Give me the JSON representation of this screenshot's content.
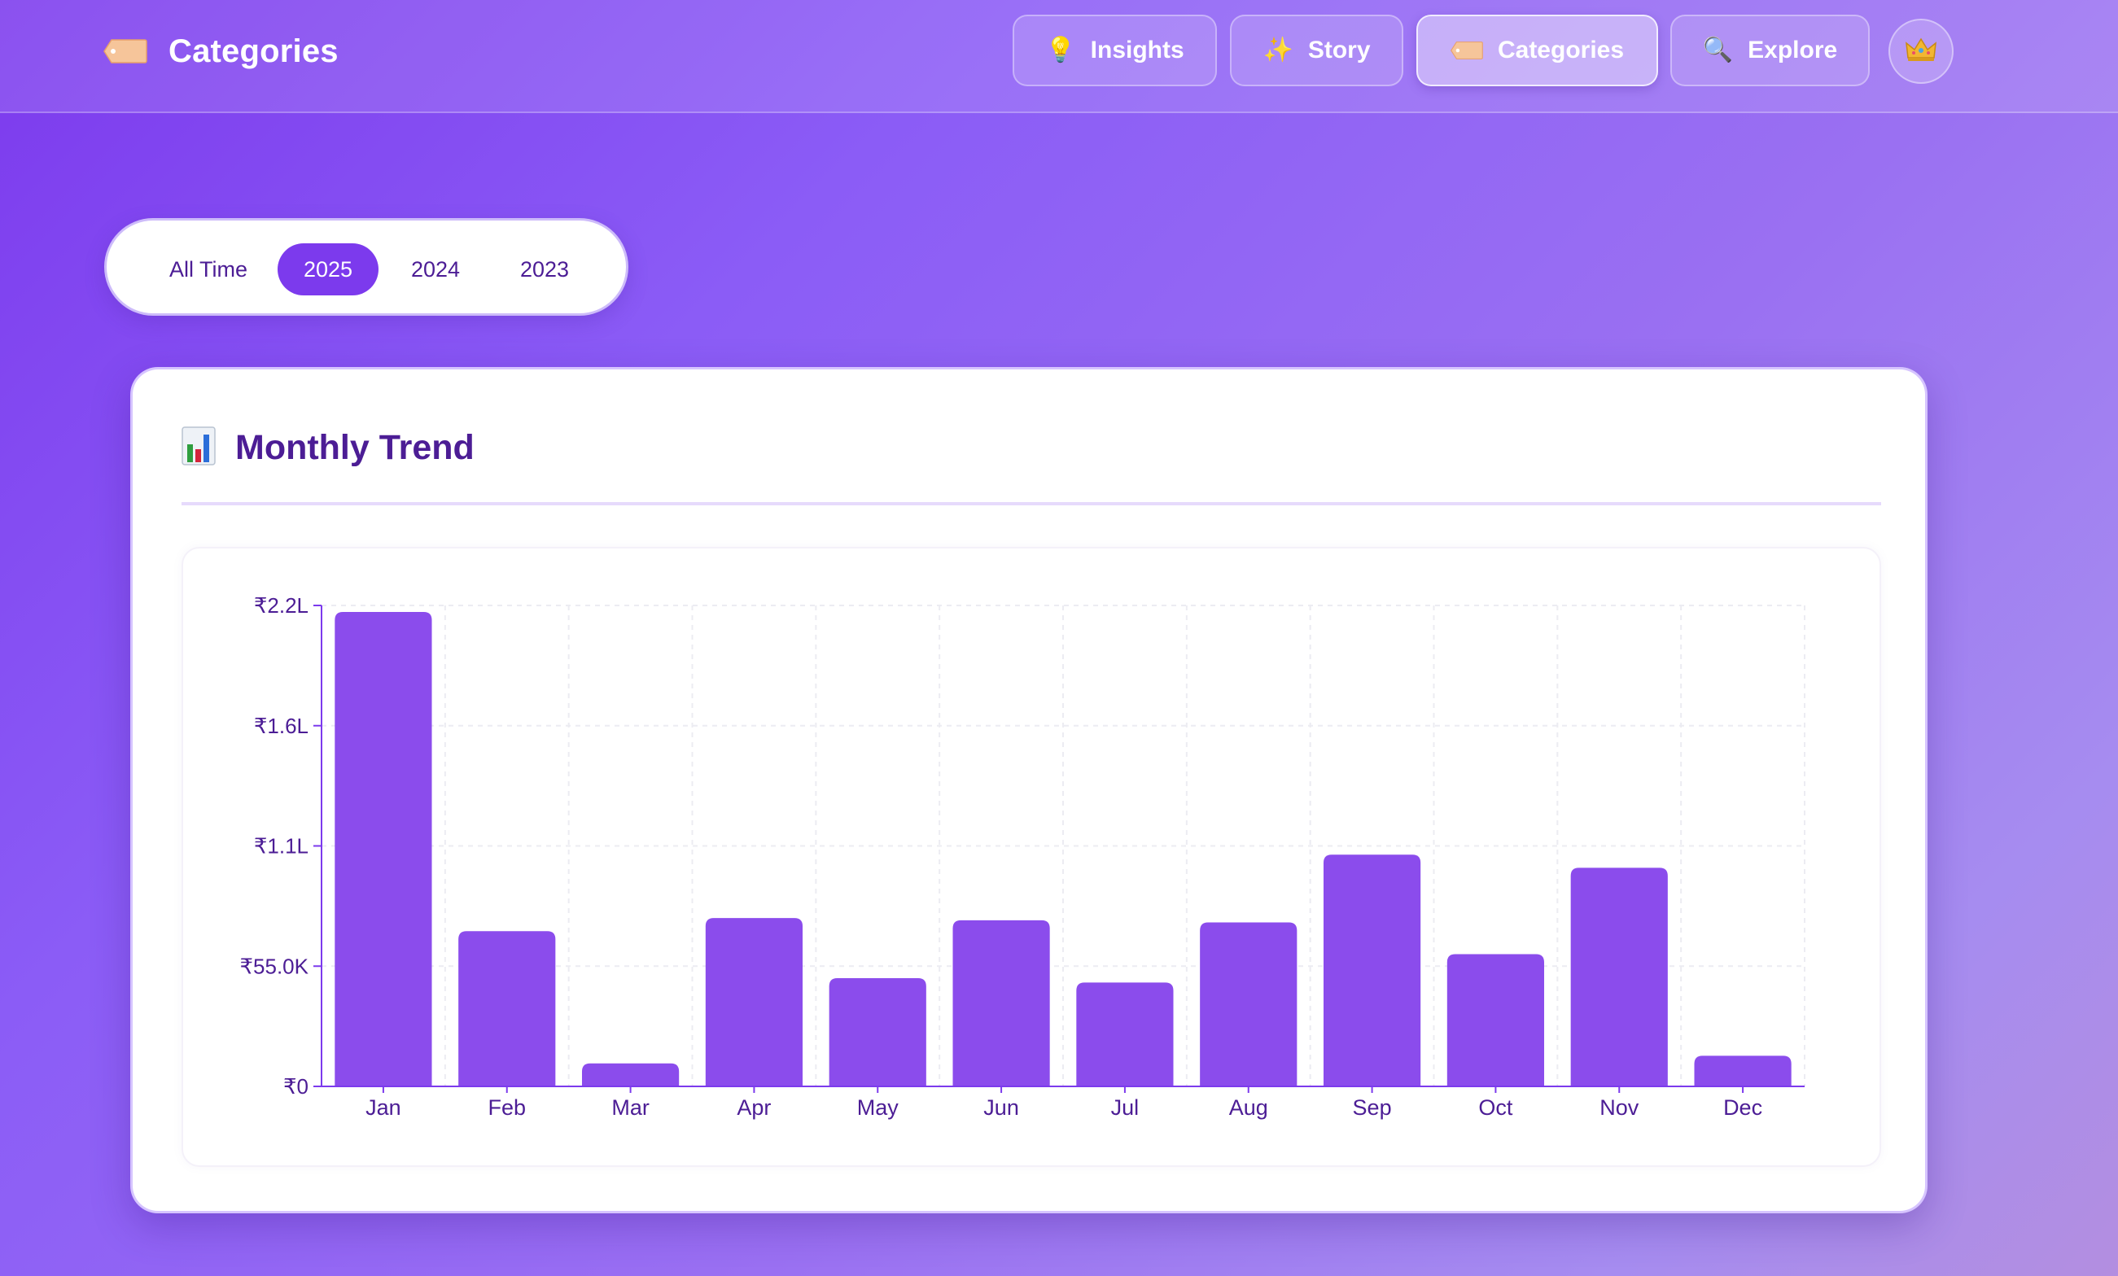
{
  "header": {
    "title": "Categories",
    "nav": [
      {
        "label": "Insights",
        "icon": "lightbulb-icon",
        "glyph": "💡",
        "active": false
      },
      {
        "label": "Story",
        "icon": "sparkles-icon",
        "glyph": "✨",
        "active": false
      },
      {
        "label": "Categories",
        "icon": "tag-icon",
        "glyph": "",
        "active": true
      },
      {
        "label": "Explore",
        "icon": "magnifier-icon",
        "glyph": "🔍",
        "active": false
      }
    ],
    "profile_icon": "crown-icon"
  },
  "year_filter": {
    "options": [
      "All Time",
      "2025",
      "2024",
      "2023"
    ],
    "selected": "2025"
  },
  "card": {
    "title": "Monthly Trend",
    "title_icon": "bar-chart-icon"
  },
  "colors": {
    "accent": "#7c3aed",
    "bar": "#8b4cec",
    "text_dark": "#4c1d95",
    "axis": "#7c3aed"
  },
  "chart_data": {
    "type": "bar",
    "categories": [
      "Jan",
      "Feb",
      "Mar",
      "Apr",
      "May",
      "Jun",
      "Jul",
      "Aug",
      "Sep",
      "Oct",
      "Nov",
      "Dec"
    ],
    "values": [
      217000,
      71000,
      10500,
      77000,
      49500,
      76000,
      47500,
      75000,
      106000,
      60500,
      100000,
      14000
    ],
    "y_ticks": [
      0,
      55000,
      110000,
      165000,
      220000
    ],
    "y_tick_labels": [
      "₹0",
      "₹55.0K",
      "₹1.1L",
      "₹1.6L",
      "₹2.2L"
    ],
    "ylim": [
      0,
      220000
    ],
    "grid": true,
    "currency": "₹"
  }
}
